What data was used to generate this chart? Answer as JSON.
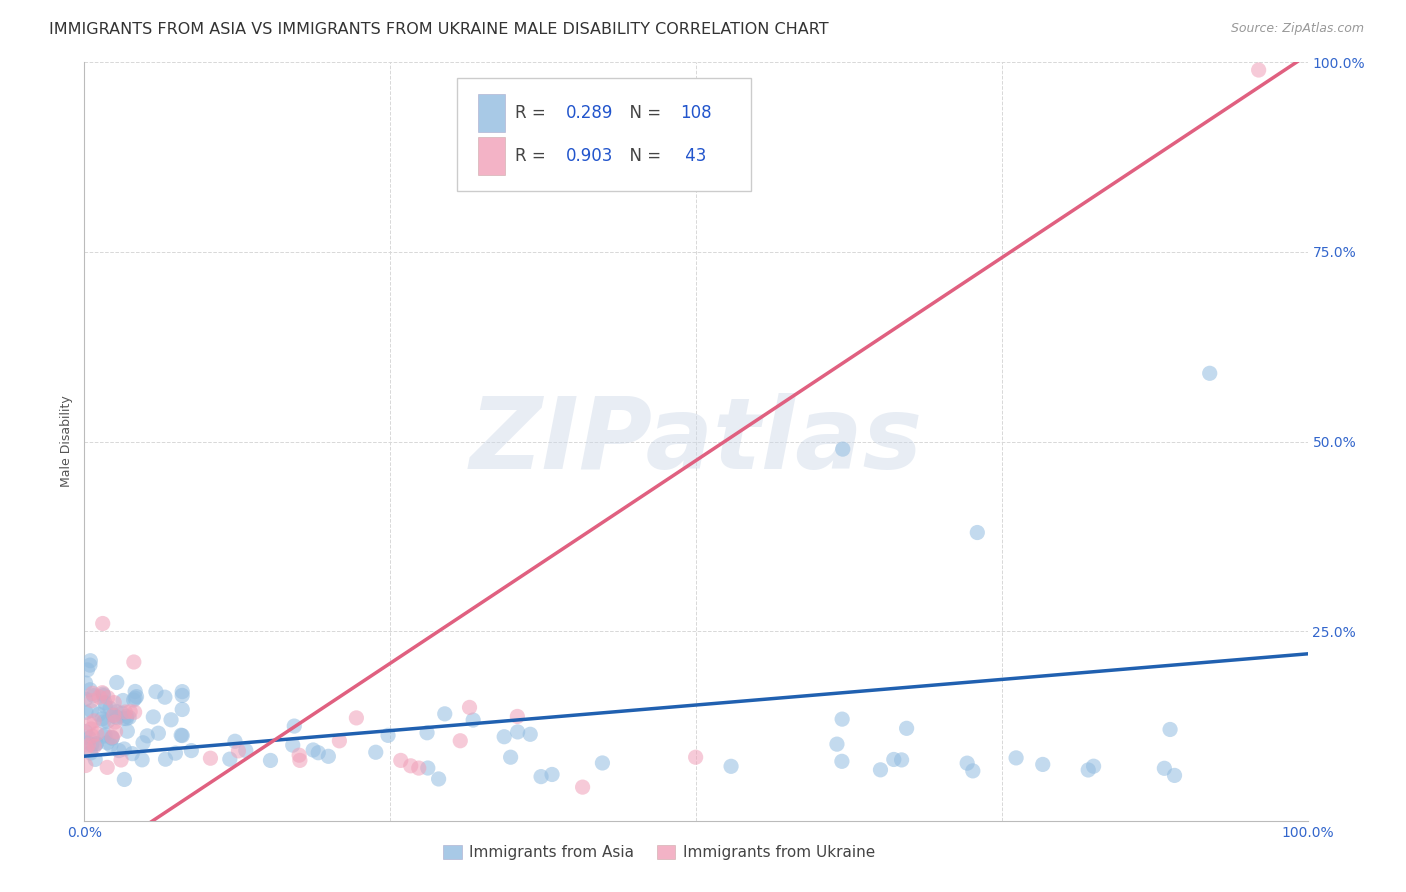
{
  "title": "IMMIGRANTS FROM ASIA VS IMMIGRANTS FROM UKRAINE MALE DISABILITY CORRELATION CHART",
  "source": "Source: ZipAtlas.com",
  "ylabel": "Male Disability",
  "xlim": [
    0,
    1
  ],
  "ylim": [
    0,
    1
  ],
  "xticks": [
    0,
    0.25,
    0.5,
    0.75,
    1.0
  ],
  "yticks": [
    0,
    0.25,
    0.5,
    0.75,
    1.0
  ],
  "background_color": "#ffffff",
  "grid_color": "#d8d8d8",
  "watermark": "ZIPatlas",
  "legend_r_asia": "0.289",
  "legend_n_asia": "108",
  "legend_r_ukraine": "0.903",
  "legend_n_ukraine": " 43",
  "asia_color": "#92bce0",
  "ukraine_color": "#f0a0b8",
  "asia_line_color": "#2060b0",
  "ukraine_line_color": "#e06080",
  "asia_line_intercept": 0.085,
  "asia_line_slope": 0.135,
  "ukraine_line_intercept": -0.06,
  "ukraine_line_slope": 1.07,
  "title_fontsize": 11.5,
  "source_fontsize": 9,
  "axis_label_fontsize": 9,
  "tick_fontsize": 10,
  "legend_fontsize": 12
}
